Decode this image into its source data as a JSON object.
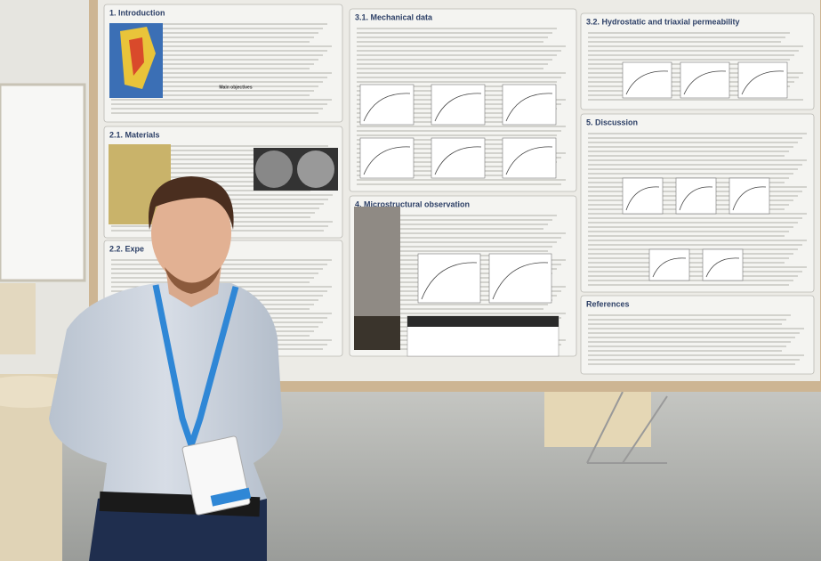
{
  "poster": {
    "sections": [
      {
        "title": "1. Introduction"
      },
      {
        "title": "2.1. Materials"
      },
      {
        "title": "2.2. Expe"
      },
      {
        "title": "3.1. Mechanical data"
      },
      {
        "title": "4. Microstructural observation"
      },
      {
        "title": "3.2. Hydrostatic and triaxial permeability"
      },
      {
        "title": "5. Discussion"
      },
      {
        "title": "References"
      }
    ],
    "subheading": "Main objectives"
  }
}
